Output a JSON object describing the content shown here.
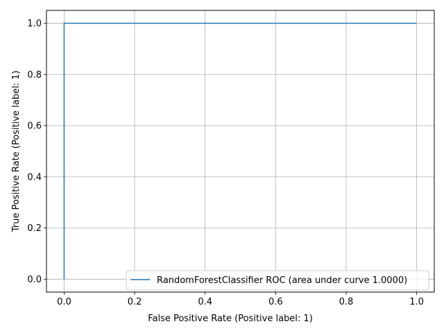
{
  "chart_data": {
    "type": "line",
    "title": "",
    "xlabel": "False Positive Rate (Positive label: 1)",
    "ylabel": "True Positive Rate (Positive label: 1)",
    "xlim": [
      -0.05,
      1.05
    ],
    "ylim": [
      -0.05,
      1.05
    ],
    "xticks": [
      0.0,
      0.2,
      0.4,
      0.6,
      0.8,
      1.0
    ],
    "yticks": [
      0.0,
      0.2,
      0.4,
      0.6,
      0.8,
      1.0
    ],
    "xtick_labels": [
      "0.0",
      "0.2",
      "0.4",
      "0.6",
      "0.8",
      "1.0"
    ],
    "ytick_labels": [
      "0.0",
      "0.2",
      "0.4",
      "0.6",
      "0.8",
      "1.0"
    ],
    "grid": true,
    "legend_position": "lower-right",
    "series": [
      {
        "name": "RandomForestClassifier ROC (area under curve 1.0000)",
        "color": "#1f77b4",
        "x": [
          0.0,
          0.0,
          1.0
        ],
        "y": [
          0.0,
          1.0,
          1.0
        ]
      }
    ]
  }
}
